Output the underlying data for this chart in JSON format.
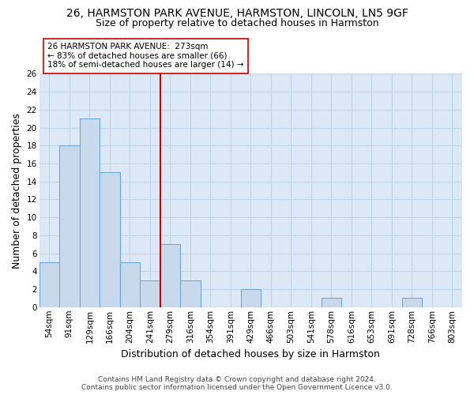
{
  "title1": "26, HARMSTON PARK AVENUE, HARMSTON, LINCOLN, LN5 9GF",
  "title2": "Size of property relative to detached houses in Harmston",
  "xlabel": "Distribution of detached houses by size in Harmston",
  "ylabel": "Number of detached properties",
  "categories": [
    "54sqm",
    "91sqm",
    "129sqm",
    "166sqm",
    "204sqm",
    "241sqm",
    "279sqm",
    "316sqm",
    "354sqm",
    "391sqm",
    "429sqm",
    "466sqm",
    "503sqm",
    "541sqm",
    "578sqm",
    "616sqm",
    "653sqm",
    "691sqm",
    "728sqm",
    "766sqm",
    "803sqm"
  ],
  "values": [
    5,
    18,
    21,
    15,
    5,
    3,
    7,
    3,
    0,
    0,
    2,
    0,
    0,
    0,
    1,
    0,
    0,
    0,
    1,
    0,
    0
  ],
  "bar_color": "#c9d9ec",
  "bar_edge_color": "#6fa8d8",
  "vline_x_index": 5,
  "vline_color": "#cc0000",
  "annotation_text": "26 HARMSTON PARK AVENUE:  273sqm\n← 83% of detached houses are smaller (66)\n18% of semi-detached houses are larger (14) →",
  "ylim": [
    0,
    26
  ],
  "yticks": [
    0,
    2,
    4,
    6,
    8,
    10,
    12,
    14,
    16,
    18,
    20,
    22,
    24,
    26
  ],
  "background_color": "#dce8f5",
  "grid_color": "#c0d4e8",
  "fig_background": "#ffffff",
  "title_fontsize": 10,
  "subtitle_fontsize": 9,
  "axis_label_fontsize": 9,
  "tick_fontsize": 7.5
}
